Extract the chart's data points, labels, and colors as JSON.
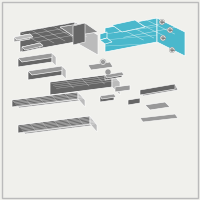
{
  "background_color": "#f0f0ec",
  "border_color": "#bbbbbb",
  "highlighted_color": "#4ab8cc",
  "gray_part": "#999999",
  "gray_dark": "#666666",
  "gray_light": "#bbbbbb",
  "gray_mid": "#888888",
  "edge_color": "#555555",
  "fig_width": 2.0,
  "fig_height": 2.0,
  "dpi": 100
}
